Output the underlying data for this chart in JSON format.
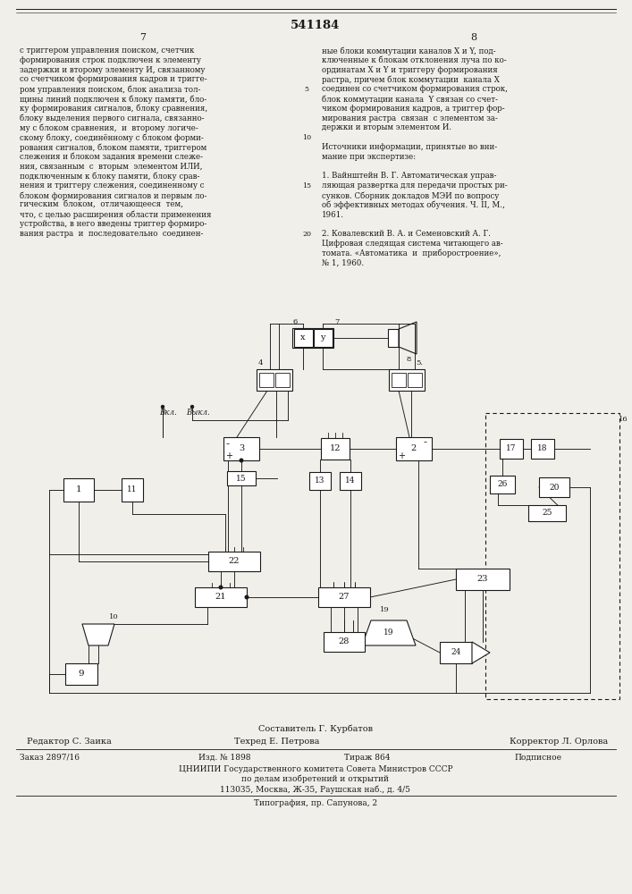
{
  "page_number": "541184",
  "col_left": "7",
  "col_right": "8",
  "bg_color": "#f0efea",
  "text_color": "#1a1a1a",
  "body_fontsize": 6.2,
  "text_left": "с триггером управления поиском, счетчик\nформирования строк подключен к элементу\nзадержки и второму элементу И, связанному\nсо счетчиком формирования кадров и тригге-\nром управления поиском, блок анализа тол-\nщины линий подключен к блоку памяти, бло-\nку формирования сигналов, блоку сравнения,\nблоку выделения первого сигнала, связанно-\nму с блоком сравнения,  и  второму логиче-\nскому блоку, соединённому с блоком форми-\nрования сигналов, блоком памяти, триггером\nслежения и блоком задания времени слеже-\nния, связанным  с  вторым  элементом ИЛИ,\nподключенным к блоку памяти, блоку срав-\nнения и триггеру слежения, соединенному с\nблоком формирования сигналов и первым ло-\nгическим  блоком,  отличающееся  тем,\nчто, с целью расширения области применения\nустройства, в него введены триггер формиро-\nвания растра  и  последовательно  соединен-",
  "text_right": "ные блоки коммутации каналов X и Y, под-\nключенные к блокам отклонения луча по ко-\nординатам X и Y и триггеру формирования\nрастра, причем блок коммутации  канала X\nсоединен со счетчиком формирования строк,\nблок коммутации канала  Y связан со счет-\nчиком формирования кадров, а триггер фор-\nмирования растра  связан  с элементом за-\nдержки и вторым элементом И.\n\nИсточники информации, принятые во вни-\nмание при экспертизе:\n\n1. Вайнштейн В. Г. Автоматическая управ-\nляющая развертка для передачи простых ри-\nсунков. Сборник докладов МЭИ по вопросу\nоб эффективных методах обучения. Ч. II, М.,\n1961.\n\n2. Ковалевский В. А. и Семеновский А. Г.\nЦифровая следящая система читающего ав-\nтомата. «Автоматика  и  приборостроение»,\n№ 1, 1960.",
  "footer_composer": "Составитель Г. Курбатов",
  "footer_editor": "Редактор С. Заика",
  "footer_tech": "Техред Е. Петрова",
  "footer_corrector": "Корректор Л. Орлова",
  "footer_order": "Заказ 2897/16",
  "footer_pub": "Изд. № 1898",
  "footer_circ": "Тираж 864",
  "footer_sub": "Подписное",
  "footer_org": "ЦНИИПИ Государственного комитета Совета Министров СССР",
  "footer_org2": "по делам изобретений и открытий",
  "footer_addr": "113035, Москва, Ж-35, Раушская наб., д. 4/5",
  "footer_typo": "Типография, пр. Сапунова, 2"
}
